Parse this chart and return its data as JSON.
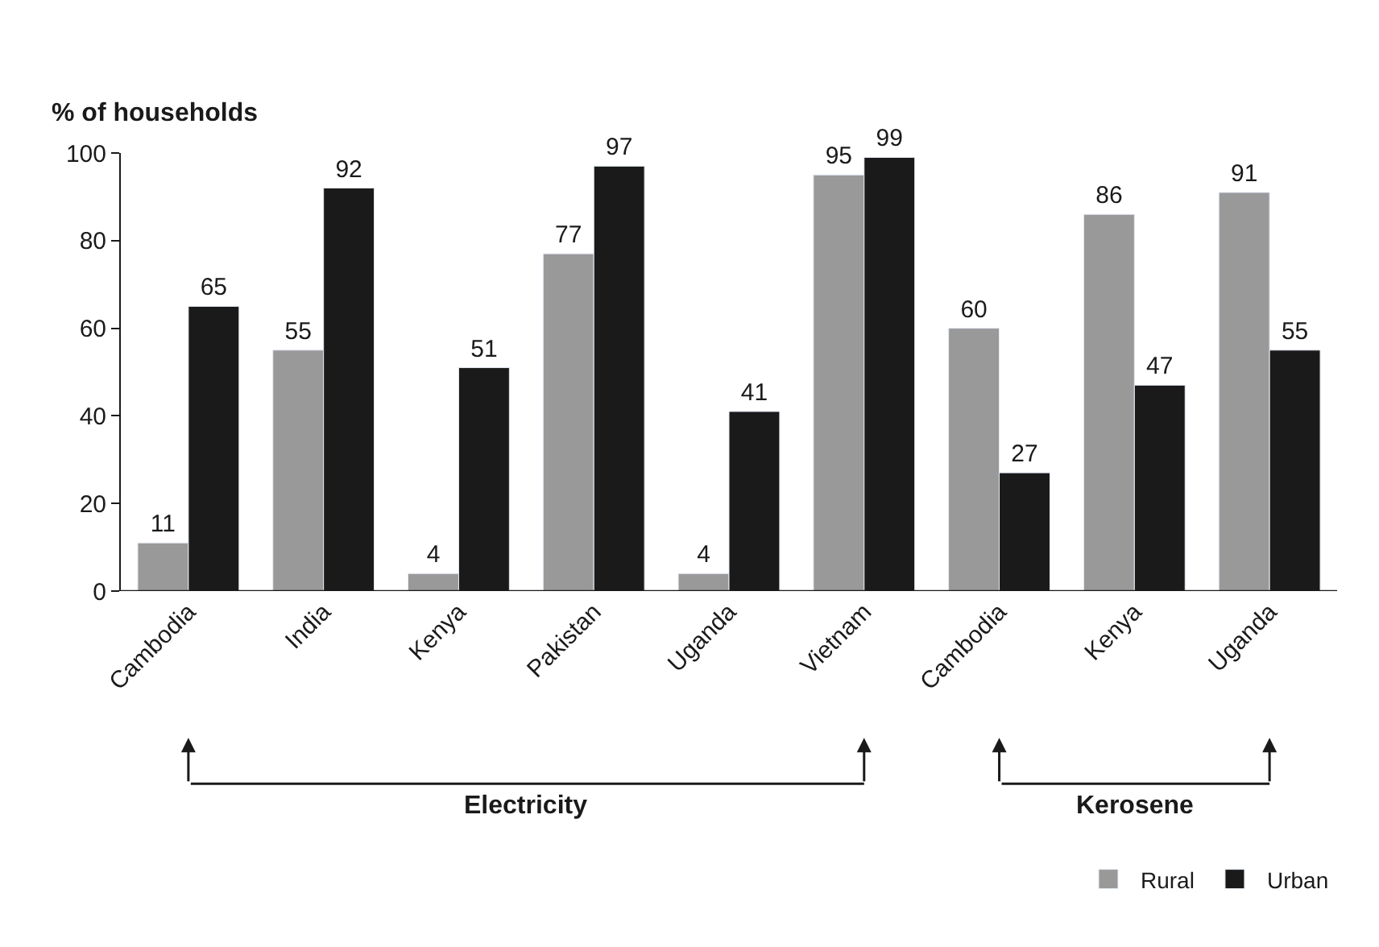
{
  "chart_data": {
    "type": "bar",
    "ylabel": "% of households",
    "categories": [
      "Cambodia",
      "India",
      "Kenya",
      "Pakistan",
      "Uganda",
      "Vietnam",
      "Cambodia",
      "Kenya",
      "Uganda"
    ],
    "series": [
      {
        "name": "Rural",
        "color": "#999999",
        "values": [
          11,
          55,
          4,
          77,
          4,
          95,
          60,
          86,
          91
        ]
      },
      {
        "name": "Urban",
        "color": "#1a1a1a",
        "values": [
          65,
          92,
          51,
          97,
          41,
          99,
          27,
          47,
          55
        ]
      }
    ],
    "ylim": [
      0,
      100
    ],
    "yticks": [
      0,
      20,
      40,
      60,
      80,
      100
    ],
    "data_labels": true,
    "grid": false,
    "legend": "bottom right",
    "annotations": [
      "Electricity",
      "Kerosene"
    ]
  }
}
